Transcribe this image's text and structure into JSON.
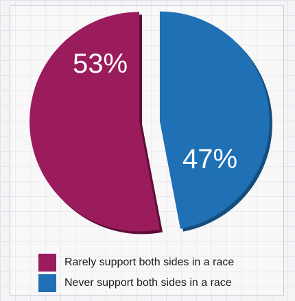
{
  "chart_data": {
    "type": "pie",
    "slices": [
      {
        "name": "Rarely support both sides in a race",
        "value": 53,
        "label": "53%",
        "color": "#9b1c5c",
        "shadow": "#5e0f37"
      },
      {
        "name": "Never support both sides in a race",
        "value": 47,
        "label": "47%",
        "color": "#1f70b4",
        "shadow": "#154d7d"
      }
    ],
    "exploded": true,
    "legend_position": "bottom",
    "grid": false
  }
}
